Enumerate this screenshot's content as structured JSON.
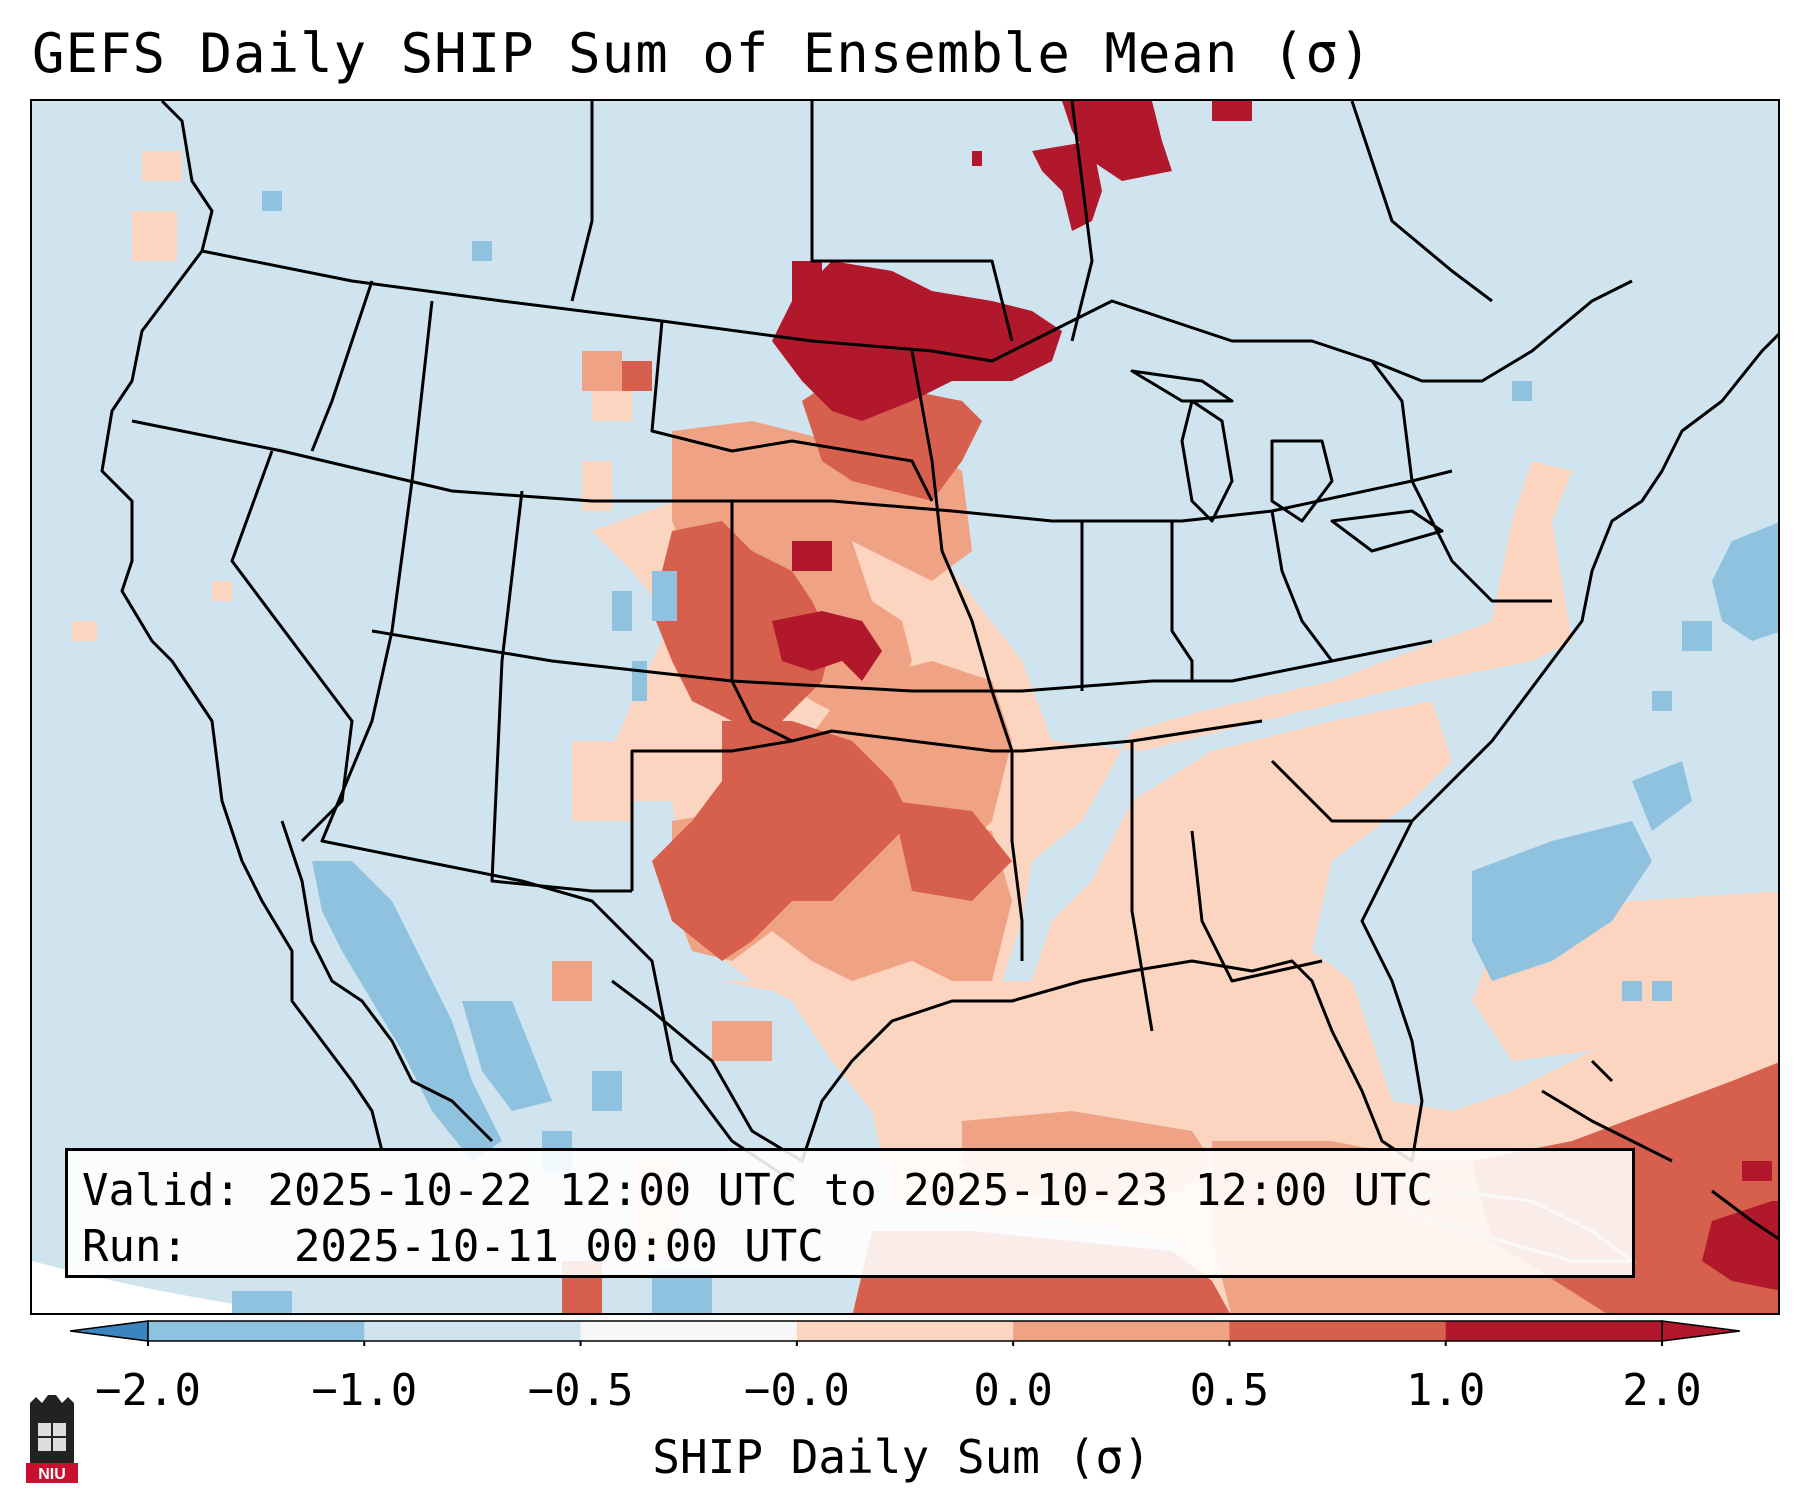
{
  "title": "GEFS Daily SHIP Sum of Ensemble Mean (σ)",
  "info": {
    "valid_label": "Valid:",
    "valid_value": "2025-10-22 12:00 UTC to 2025-10-23 12:00 UTC",
    "run_label": "Run:",
    "run_value": "2025-10-11 00:00 UTC"
  },
  "colorbar": {
    "label": "SHIP Daily Sum (σ)",
    "ticks": [
      "−2.0",
      "−1.0",
      "−0.5",
      "−0.0",
      "0.0",
      "0.5",
      "1.0",
      "2.0"
    ],
    "colors": [
      "#3a85c0",
      "#8fc2de",
      "#d0e4f0",
      "#f7f7f7",
      "#fbd5c0",
      "#f0a285",
      "#d6604d",
      "#b2182b"
    ]
  },
  "map": {
    "background_color": "#d0e4f0",
    "anomaly_regions": [
      {
        "name": "northern-plains-core",
        "level": "2.0"
      },
      {
        "name": "southern-canada-core",
        "level": "2.0"
      },
      {
        "name": "central-plains",
        "level": "1.0"
      },
      {
        "name": "texas-oklahoma",
        "level": "1.0"
      },
      {
        "name": "gulf-of-mexico",
        "level": "0.0"
      },
      {
        "name": "caribbean",
        "level": "1.0"
      },
      {
        "name": "gulf-of-california",
        "level": "-1.0"
      },
      {
        "name": "western-atlantic",
        "level": "-1.0"
      }
    ]
  },
  "logo_text": "NIU"
}
